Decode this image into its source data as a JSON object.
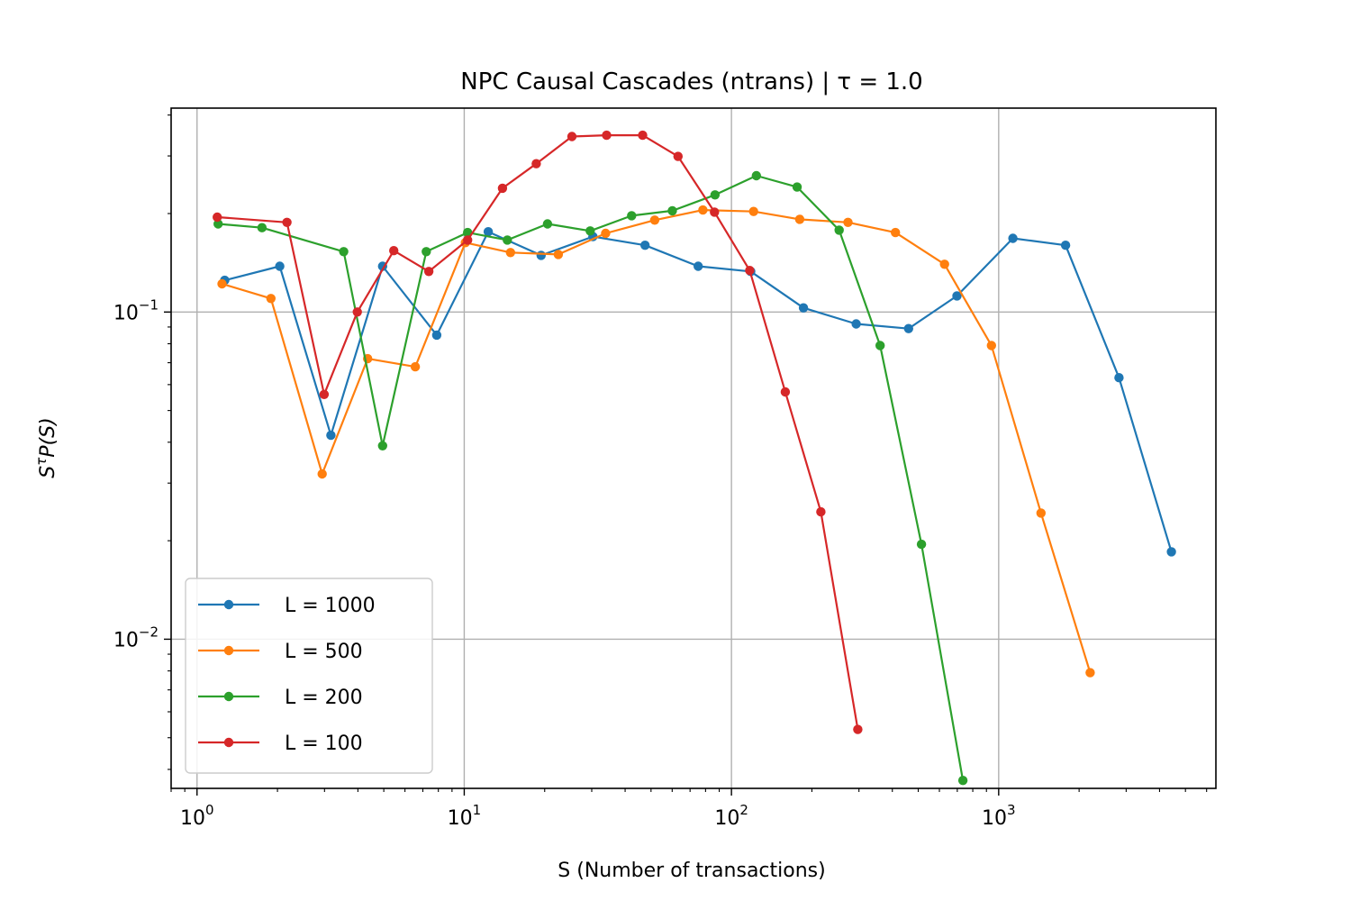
{
  "chart_data": {
    "type": "line",
    "title": "NPC Causal Cascades (ntrans) | τ = 1.0",
    "xlabel": "S (Number of transactions)",
    "ylabel": "S^τ P(S)",
    "xscale": "log",
    "yscale": "log",
    "xlim": [
      0.8,
      6500
    ],
    "ylim": [
      0.0035,
      0.42
    ],
    "x_ticks": [
      {
        "value": 1,
        "base": "10",
        "exp": "0"
      },
      {
        "value": 10,
        "base": "10",
        "exp": "1"
      },
      {
        "value": 100,
        "base": "10",
        "exp": "2"
      },
      {
        "value": 1000,
        "base": "10",
        "exp": "3"
      }
    ],
    "y_ticks": [
      {
        "value": 0.01,
        "base": "10",
        "exp": "−2"
      },
      {
        "value": 0.1,
        "base": "10",
        "exp": "−1"
      }
    ],
    "grid": true,
    "legend_position": "lower-left",
    "series": [
      {
        "name": "L = 1000",
        "color": "#1f77b4",
        "points": [
          [
            1.27,
            0.125
          ],
          [
            2.04,
            0.138
          ],
          [
            3.17,
            0.042
          ],
          [
            4.95,
            0.138
          ],
          [
            7.89,
            0.085
          ],
          [
            12.3,
            0.176
          ],
          [
            19.4,
            0.149
          ],
          [
            30.3,
            0.17
          ],
          [
            47.5,
            0.16
          ],
          [
            75.1,
            0.138
          ],
          [
            118,
            0.133
          ],
          [
            186,
            0.103
          ],
          [
            293,
            0.092
          ],
          [
            460,
            0.089
          ],
          [
            698,
            0.112
          ],
          [
            1130,
            0.168
          ],
          [
            1780,
            0.16
          ],
          [
            2820,
            0.063
          ],
          [
            4430,
            0.0185
          ]
        ]
      },
      {
        "name": "L = 500",
        "color": "#ff7f0e",
        "points": [
          [
            1.24,
            0.122
          ],
          [
            1.89,
            0.11
          ],
          [
            2.94,
            0.032
          ],
          [
            4.35,
            0.072
          ],
          [
            6.56,
            0.068
          ],
          [
            10.1,
            0.163
          ],
          [
            14.9,
            0.152
          ],
          [
            22.5,
            0.15
          ],
          [
            33.8,
            0.174
          ],
          [
            51.6,
            0.191
          ],
          [
            78.2,
            0.205
          ],
          [
            121,
            0.203
          ],
          [
            180,
            0.192
          ],
          [
            273,
            0.188
          ],
          [
            411,
            0.175
          ],
          [
            627,
            0.14
          ],
          [
            940,
            0.079
          ],
          [
            1440,
            0.0243
          ],
          [
            2200,
            0.0079
          ]
        ]
      },
      {
        "name": "L = 200",
        "color": "#2ca02c",
        "points": [
          [
            1.2,
            0.186
          ],
          [
            1.75,
            0.181
          ],
          [
            3.54,
            0.153
          ],
          [
            4.95,
            0.039
          ],
          [
            7.21,
            0.153
          ],
          [
            10.3,
            0.175
          ],
          [
            14.5,
            0.166
          ],
          [
            20.5,
            0.186
          ],
          [
            29.6,
            0.177
          ],
          [
            42.3,
            0.197
          ],
          [
            60.1,
            0.204
          ],
          [
            86.8,
            0.228
          ],
          [
            124,
            0.261
          ],
          [
            176,
            0.241
          ],
          [
            253,
            0.178
          ],
          [
            360,
            0.079
          ],
          [
            514,
            0.0195
          ],
          [
            735,
            0.0037
          ]
        ]
      },
      {
        "name": "L = 100",
        "color": "#d62728",
        "points": [
          [
            1.19,
            0.195
          ],
          [
            2.17,
            0.188
          ],
          [
            2.99,
            0.056
          ],
          [
            3.98,
            0.1
          ],
          [
            5.45,
            0.154
          ],
          [
            7.37,
            0.133
          ],
          [
            10.3,
            0.166
          ],
          [
            13.9,
            0.239
          ],
          [
            18.6,
            0.284
          ],
          [
            25.3,
            0.344
          ],
          [
            34.1,
            0.347
          ],
          [
            46.5,
            0.347
          ],
          [
            63.1,
            0.299
          ],
          [
            86.4,
            0.202
          ],
          [
            117,
            0.134
          ],
          [
            159,
            0.057
          ],
          [
            216,
            0.0245
          ],
          [
            297,
            0.0053
          ]
        ]
      }
    ]
  }
}
